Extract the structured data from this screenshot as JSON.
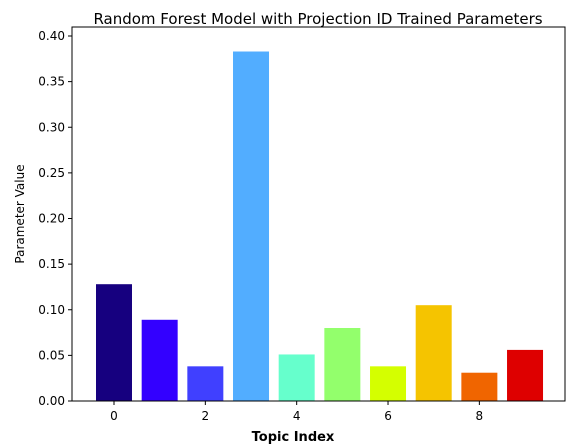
{
  "chart_data": {
    "type": "bar",
    "title": "Random Forest Model with Projection ID Trained Parameters",
    "xlabel": "Topic Index",
    "ylabel": "Parameter Value",
    "categories": [
      0,
      1,
      2,
      3,
      4,
      5,
      6,
      7,
      8,
      9
    ],
    "values": [
      0.128,
      0.089,
      0.038,
      0.383,
      0.051,
      0.08,
      0.038,
      0.105,
      0.031,
      0.056
    ],
    "colors": [
      "#16007f",
      "#3300ff",
      "#4040ff",
      "#52adff",
      "#66ffcc",
      "#93ff6c",
      "#d4ff00",
      "#f5c400",
      "#f06500",
      "#de0000"
    ],
    "ylim": [
      0,
      0.4
    ],
    "yticks": [
      "0.00",
      "0.05",
      "0.10",
      "0.15",
      "0.20",
      "0.25",
      "0.30",
      "0.35",
      "0.40"
    ],
    "xticks": [
      "0",
      "2",
      "4",
      "6",
      "8"
    ],
    "grid": false,
    "legend": "none"
  }
}
